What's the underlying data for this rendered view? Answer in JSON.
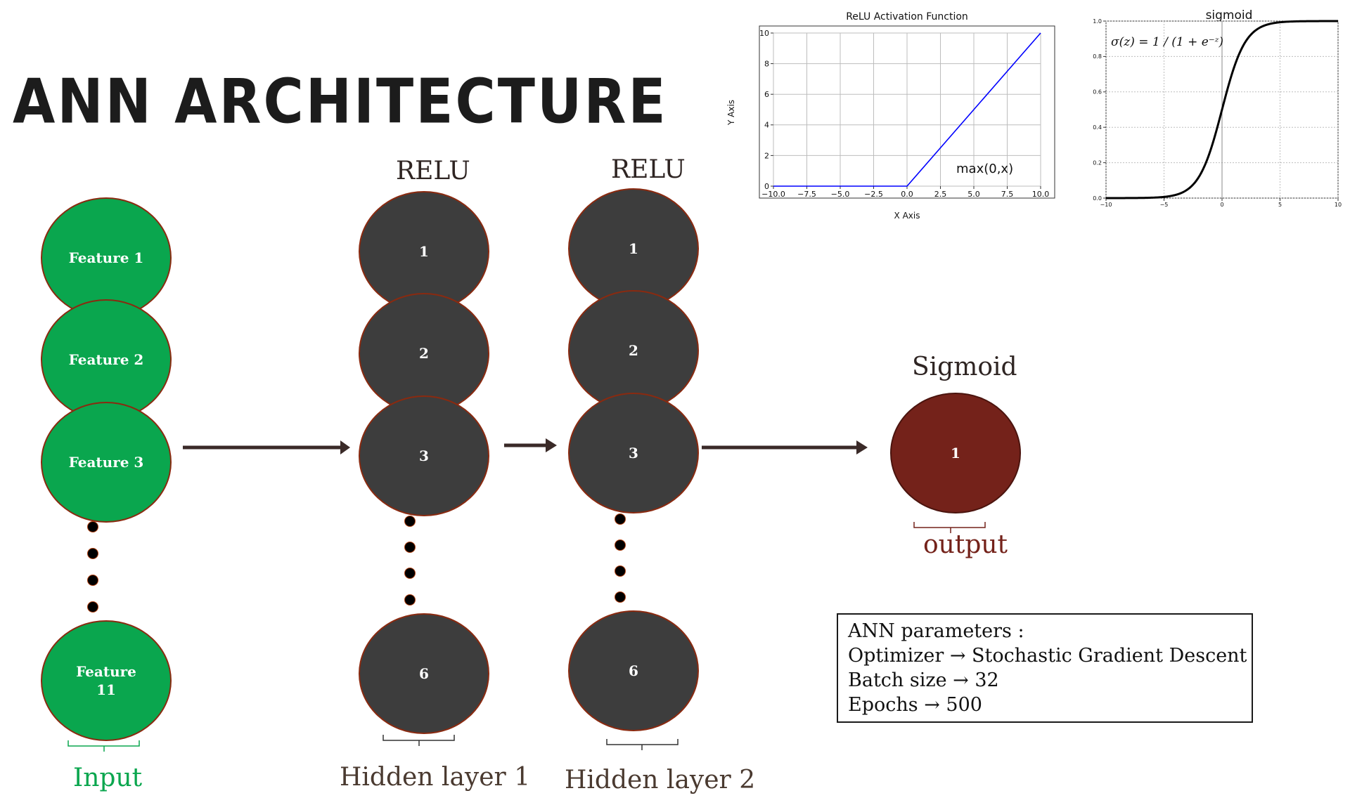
{
  "title": "ANN ARCHITECTURE",
  "colors": {
    "input_node": "#0aa64e",
    "hidden_node": "#3d3d3d",
    "output_node": "#74221a",
    "node_border": "#8a2a10",
    "arrow": "#3a2a28",
    "input_label": "#0aa64e",
    "hidden_label": "#4a3a30",
    "output_label": "#74221a",
    "relu_line": "#0000ff",
    "sigmoid_line": "#000000"
  },
  "input_layer": {
    "nodes": [
      "Feature 1",
      "Feature 2",
      "Feature 3",
      "Feature 11"
    ],
    "label": "Input"
  },
  "hidden_layer_1": {
    "activation": "RELU",
    "nodes": [
      "1",
      "2",
      "3",
      "6"
    ],
    "label": "Hidden layer 1"
  },
  "hidden_layer_2": {
    "activation": "RELU",
    "nodes": [
      "1",
      "2",
      "3",
      "6"
    ],
    "label": "Hidden layer 2"
  },
  "output_layer": {
    "activation": "Sigmoid",
    "nodes": [
      "1"
    ],
    "label": "output"
  },
  "params": {
    "heading": "ANN parameters :",
    "optimizer": "Optimizer → Stochastic Gradient Descent",
    "batch": "Batch size → 32",
    "epochs": "Epochs → 500"
  },
  "chart_data": [
    {
      "type": "line",
      "title": "ReLU Activation Function",
      "xlabel": "X Axis",
      "ylabel": "Y Axis",
      "xlim": [
        -10,
        10
      ],
      "ylim": [
        0,
        10
      ],
      "xticks": [
        "−10.0",
        "−7.5",
        "−5.0",
        "−2.5",
        "0.0",
        "2.5",
        "5.0",
        "7.5",
        "10.0"
      ],
      "yticks": [
        "0",
        "2",
        "4",
        "6",
        "8",
        "10"
      ],
      "grid": true,
      "annotation": "max(0,x)",
      "series": [
        {
          "x": [
            -10,
            0,
            10
          ],
          "y": [
            0,
            0,
            10
          ]
        }
      ]
    },
    {
      "type": "line",
      "title": "sigmoid",
      "formula": "σ(z) = 1 / (1 + e⁻ᶻ)",
      "xlim": [
        -10,
        10
      ],
      "ylim": [
        0,
        1
      ],
      "xticks": [
        "−10",
        "−5",
        "0",
        "5",
        "10"
      ],
      "yticks": [
        "0.0",
        "0.2",
        "0.4",
        "0.6",
        "0.8",
        "1.0"
      ],
      "grid": true,
      "series": [
        {
          "function": "1/(1+exp(-x))",
          "x_range": [
            -10,
            10
          ]
        }
      ]
    }
  ]
}
